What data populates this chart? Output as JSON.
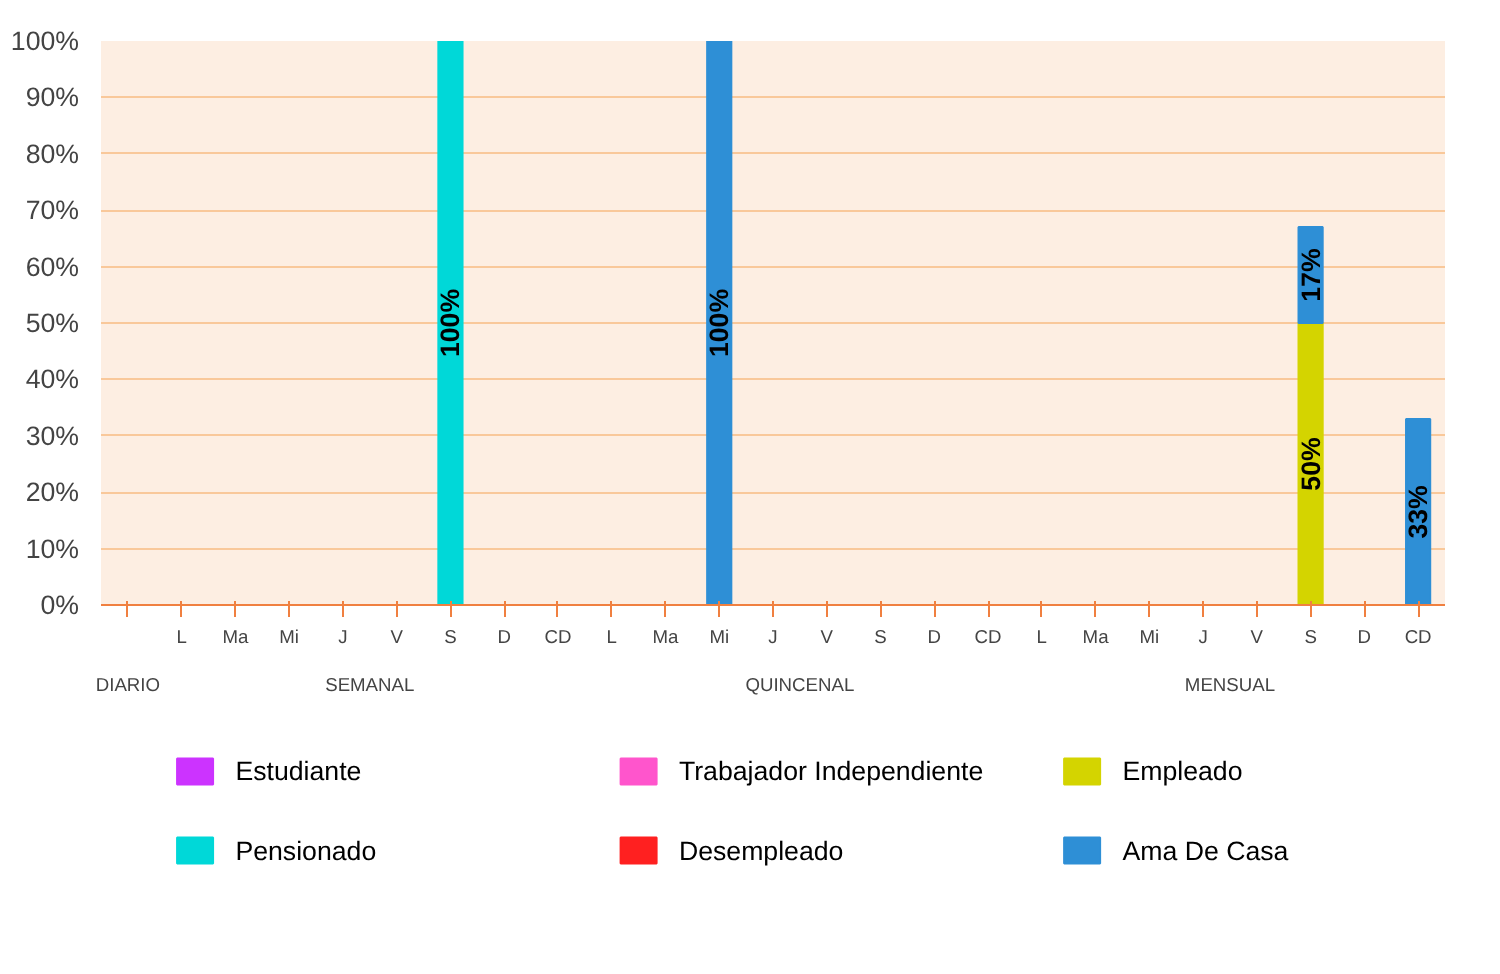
{
  "chart_data": {
    "type": "bar",
    "stacked": true,
    "grid": "y",
    "legend": "bottom",
    "categories": [
      null,
      "L",
      "Ma",
      "Mi",
      "J",
      "V",
      "S",
      "D",
      "CD",
      "L",
      "Ma",
      "Mi",
      "J",
      "V",
      "S",
      "D",
      "CD",
      "L",
      "Ma",
      "Mi",
      "J",
      "V",
      "S",
      "D",
      "CD"
    ],
    "annotations": [
      "DIARIO",
      "SEMANAL",
      "QUINCENAL",
      "MENSUAL"
    ],
    "ylim": [
      0,
      100
    ],
    "yticks": [
      {
        "value": 0,
        "label": "0%"
      },
      {
        "value": 10,
        "label": "10%"
      },
      {
        "value": 20,
        "label": "20%"
      },
      {
        "value": 30,
        "label": "30%"
      },
      {
        "value": 40,
        "label": "40%"
      },
      {
        "value": 50,
        "label": "50%"
      },
      {
        "value": 60,
        "label": "60%"
      },
      {
        "value": 70,
        "label": "70%"
      },
      {
        "value": 80,
        "label": "80%"
      },
      {
        "value": 90,
        "label": "90%"
      },
      {
        "value": 100,
        "label": "100%"
      }
    ],
    "series": [
      {
        "name": "Estudiante",
        "color": "#cc33ff",
        "values": [
          null,
          null,
          null,
          null,
          null,
          null,
          null,
          null,
          null,
          null,
          null,
          null,
          null,
          null,
          null,
          null,
          null,
          null,
          null,
          null,
          null,
          null,
          null,
          null,
          null
        ]
      },
      {
        "name": "Trabajador Independiente",
        "color": "#ff55cc",
        "values": [
          null,
          null,
          null,
          null,
          null,
          null,
          null,
          null,
          null,
          null,
          null,
          null,
          null,
          null,
          null,
          null,
          null,
          null,
          null,
          null,
          null,
          null,
          null,
          null,
          null
        ]
      },
      {
        "name": "Empleado",
        "color": "#d4d400",
        "values": [
          null,
          null,
          null,
          null,
          null,
          null,
          null,
          null,
          null,
          null,
          null,
          null,
          null,
          null,
          null,
          null,
          null,
          null,
          null,
          null,
          null,
          null,
          50,
          null,
          null
        ],
        "value_labels": [
          null,
          null,
          null,
          null,
          null,
          null,
          null,
          null,
          null,
          null,
          null,
          null,
          null,
          null,
          null,
          null,
          null,
          null,
          null,
          null,
          null,
          null,
          "50%",
          null,
          null
        ]
      },
      {
        "name": "Pensionado",
        "color": "#00d8d8",
        "values": [
          null,
          null,
          null,
          null,
          null,
          null,
          100,
          null,
          null,
          null,
          null,
          null,
          null,
          null,
          null,
          null,
          null,
          null,
          null,
          null,
          null,
          null,
          null,
          null,
          null
        ],
        "value_labels": [
          null,
          null,
          null,
          null,
          null,
          null,
          "100%",
          null,
          null,
          null,
          null,
          null,
          null,
          null,
          null,
          null,
          null,
          null,
          null,
          null,
          null,
          null,
          null,
          null,
          null
        ]
      },
      {
        "name": "Desempleado",
        "color": "#ff2020",
        "values": [
          null,
          null,
          null,
          null,
          null,
          null,
          null,
          null,
          null,
          null,
          null,
          null,
          null,
          null,
          null,
          null,
          null,
          null,
          null,
          null,
          null,
          null,
          null,
          null,
          null
        ]
      },
      {
        "name": "Ama De Casa",
        "color": "#2e8fd6",
        "values": [
          null,
          null,
          null,
          null,
          null,
          null,
          null,
          null,
          null,
          null,
          null,
          100,
          null,
          null,
          null,
          null,
          null,
          null,
          null,
          null,
          null,
          null,
          17,
          null,
          33
        ],
        "value_labels": [
          null,
          null,
          null,
          null,
          null,
          null,
          null,
          null,
          null,
          null,
          null,
          "100%",
          null,
          null,
          null,
          null,
          null,
          null,
          null,
          null,
          null,
          null,
          "17%",
          null,
          "33%"
        ]
      }
    ]
  }
}
